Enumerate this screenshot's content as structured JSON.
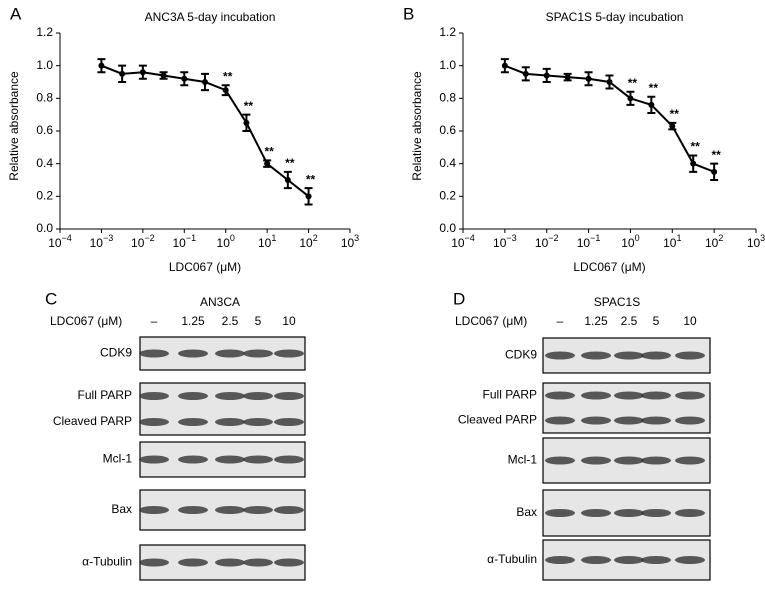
{
  "chart_data": [
    {
      "type": "line",
      "panel": "A",
      "title": "ANC3A 5-day incubation",
      "xlabel": "LDC067 (μM)",
      "ylabel": "Relative absorbance",
      "xscale": "log",
      "xlim": [
        0.0001,
        1000
      ],
      "xticks": [
        {
          "value": 0.0001,
          "label": "10−4"
        },
        {
          "value": 0.001,
          "label": "10−3"
        },
        {
          "value": 0.01,
          "label": "10−2"
        },
        {
          "value": 0.1,
          "label": "10−1"
        },
        {
          "value": 1,
          "label": "100"
        },
        {
          "value": 10,
          "label": "101"
        },
        {
          "value": 100,
          "label": "102"
        },
        {
          "value": 1000,
          "label": "103"
        }
      ],
      "ylim": [
        0,
        1.2
      ],
      "yticks": [
        {
          "value": 0,
          "label": "0.0"
        },
        0.2,
        0.4,
        0.6,
        0.8,
        {
          "value": 1,
          "label": "1.0"
        },
        1.2
      ],
      "color": "#000000",
      "x": [
        0.001,
        0.00316,
        0.01,
        0.0316,
        0.1,
        0.316,
        1,
        3.16,
        10,
        31.6,
        100
      ],
      "values": [
        1.0,
        0.95,
        0.96,
        0.94,
        0.92,
        0.9,
        0.85,
        0.65,
        0.4,
        0.3,
        0.2
      ],
      "errors": [
        0.04,
        0.05,
        0.04,
        0.02,
        0.04,
        0.05,
        0.03,
        0.05,
        0.02,
        0.05,
        0.05
      ],
      "significance": [
        null,
        null,
        null,
        null,
        null,
        null,
        "**",
        "**",
        "**",
        "**",
        "**"
      ]
    },
    {
      "type": "line",
      "panel": "B",
      "title": "SPAC1S 5-day incubation",
      "xlabel": "LDC067 (μM)",
      "ylabel": "Relative absorbance",
      "xscale": "log",
      "xlim": [
        0.0001,
        1000
      ],
      "xticks": [
        {
          "value": 0.0001,
          "label": "10−4"
        },
        {
          "value": 0.001,
          "label": "10−3"
        },
        {
          "value": 0.01,
          "label": "10−2"
        },
        {
          "value": 0.1,
          "label": "10−1"
        },
        {
          "value": 1,
          "label": "100"
        },
        {
          "value": 10,
          "label": "101"
        },
        {
          "value": 100,
          "label": "102"
        },
        {
          "value": 1000,
          "label": "103"
        }
      ],
      "ylim": [
        0,
        1.2
      ],
      "yticks": [
        {
          "value": 0,
          "label": "0.0"
        },
        0.2,
        0.4,
        0.6,
        0.8,
        {
          "value": 1,
          "label": "1.0"
        },
        1.2
      ],
      "color": "#000000",
      "x": [
        0.001,
        0.00316,
        0.01,
        0.0316,
        0.1,
        0.316,
        1,
        3.16,
        10,
        31.6,
        100
      ],
      "values": [
        1.0,
        0.95,
        0.94,
        0.93,
        0.92,
        0.9,
        0.8,
        0.76,
        0.63,
        0.4,
        0.35
      ],
      "errors": [
        0.04,
        0.04,
        0.04,
        0.02,
        0.04,
        0.04,
        0.04,
        0.05,
        0.02,
        0.05,
        0.05
      ],
      "significance": [
        null,
        null,
        null,
        null,
        null,
        null,
        "**",
        "**",
        "**",
        "**",
        "**"
      ]
    }
  ],
  "blots": [
    {
      "panel": "C",
      "title": "AN3CA",
      "treatment_label": "LDC067 (μM)",
      "lanes": [
        "–",
        "1.25",
        "2.5",
        "5",
        "10"
      ],
      "rows": [
        {
          "labels": [
            "CDK9"
          ]
        },
        {
          "labels": [
            "Full PARP",
            "Cleaved PARP"
          ]
        },
        {
          "labels": [
            "Mcl-1"
          ]
        },
        {
          "labels": [
            "Bax"
          ]
        },
        {
          "labels": [
            "α-Tubulin"
          ]
        }
      ]
    },
    {
      "panel": "D",
      "title": "SPAC1S",
      "treatment_label": "LDC067 (μM)",
      "lanes": [
        "–",
        "1.25",
        "2.5",
        "5",
        "10"
      ],
      "rows": [
        {
          "labels": [
            "CDK9"
          ]
        },
        {
          "labels": [
            "Full PARP",
            "Cleaved PARP"
          ]
        },
        {
          "labels": [
            "Mcl-1"
          ]
        },
        {
          "labels": [
            "Bax"
          ]
        },
        {
          "labels": [
            "α-Tubulin"
          ]
        }
      ]
    }
  ]
}
